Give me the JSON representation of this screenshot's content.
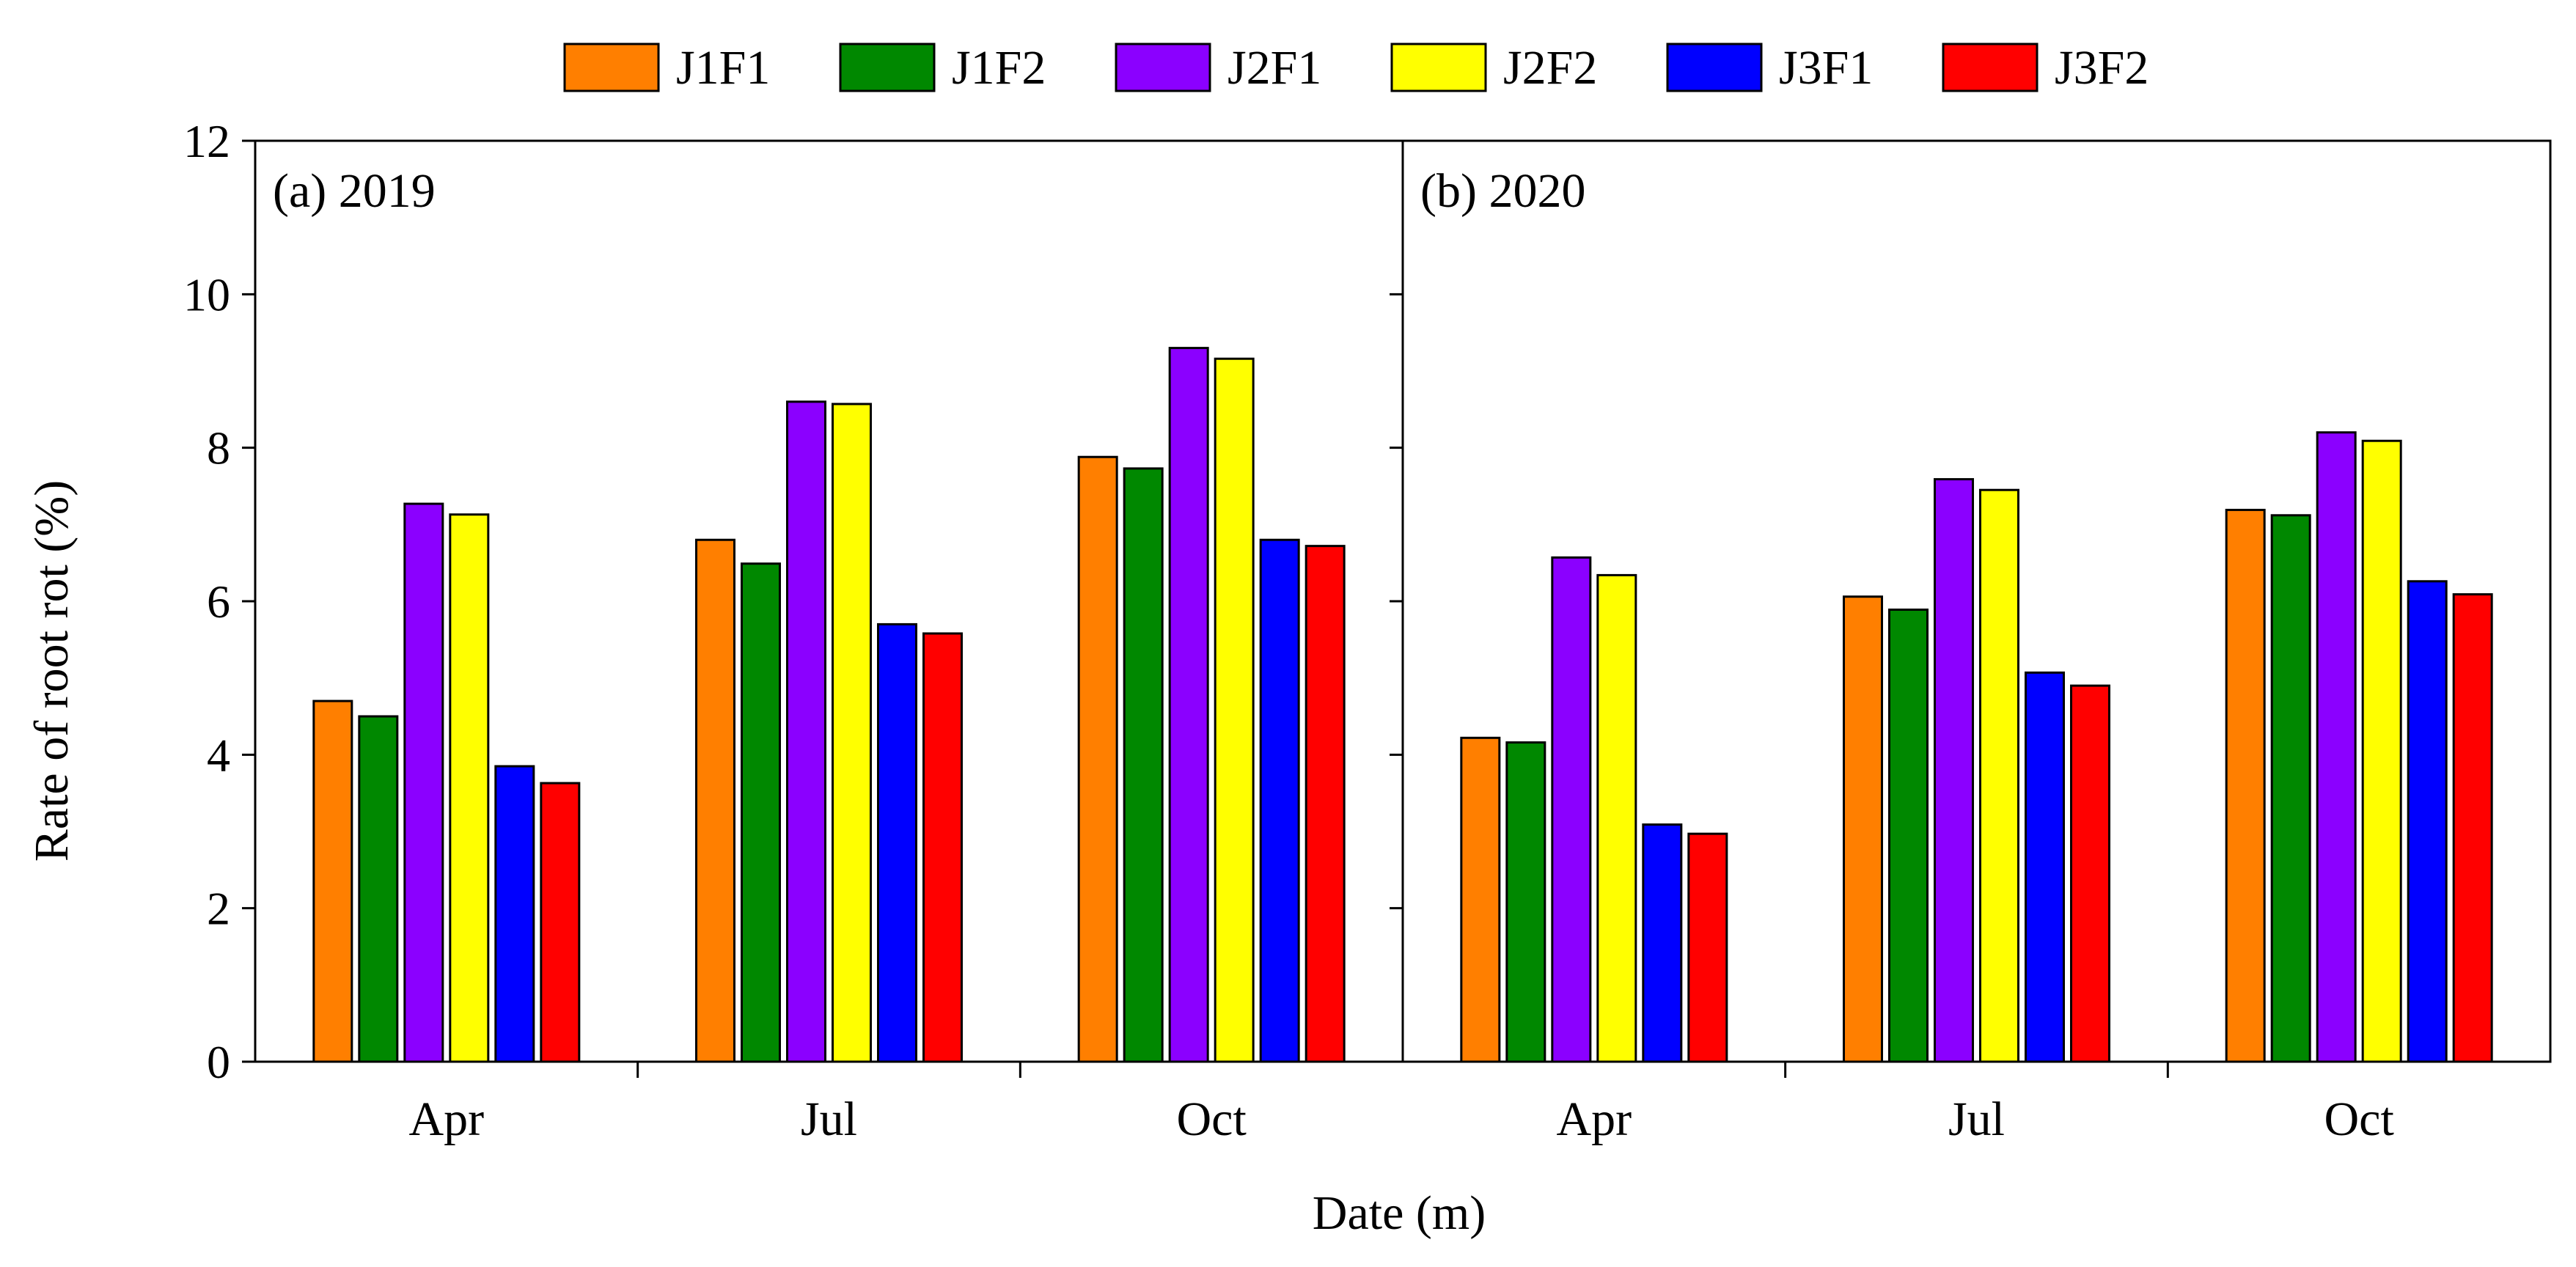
{
  "chart_data": {
    "type": "bar",
    "xlabel": "Date (m)",
    "ylabel": "Rate of root rot (%)",
    "ylim": [
      0,
      12
    ],
    "yticks": [
      0,
      2,
      4,
      6,
      8,
      10,
      12
    ],
    "legend": {
      "placement": "top-center"
    },
    "series": [
      {
        "name": "J1F1",
        "color": "#FF7F00"
      },
      {
        "name": "J1F2",
        "color": "#008800"
      },
      {
        "name": "J2F1",
        "color": "#8B00FF"
      },
      {
        "name": "J2F2",
        "color": "#FFFF00"
      },
      {
        "name": "J3F1",
        "color": "#0000FF"
      },
      {
        "name": "J3F2",
        "color": "#FF0000"
      }
    ],
    "panels": [
      {
        "label": "(a) 2019",
        "categories": [
          "Apr",
          "Jul",
          "Oct"
        ],
        "values": [
          [
            4.7,
            4.5,
            7.27,
            7.13,
            3.85,
            3.63
          ],
          [
            6.8,
            6.49,
            8.6,
            8.57,
            5.7,
            5.58
          ],
          [
            7.88,
            7.73,
            9.3,
            9.16,
            6.8,
            6.72
          ]
        ]
      },
      {
        "label": "(b) 2020",
        "categories": [
          "Apr",
          "Jul",
          "Oct"
        ],
        "values": [
          [
            4.22,
            4.16,
            6.57,
            6.34,
            3.09,
            2.97
          ],
          [
            6.06,
            5.89,
            7.59,
            7.45,
            5.07,
            4.9
          ],
          [
            7.19,
            7.12,
            8.2,
            8.09,
            6.26,
            6.09
          ]
        ]
      }
    ]
  }
}
